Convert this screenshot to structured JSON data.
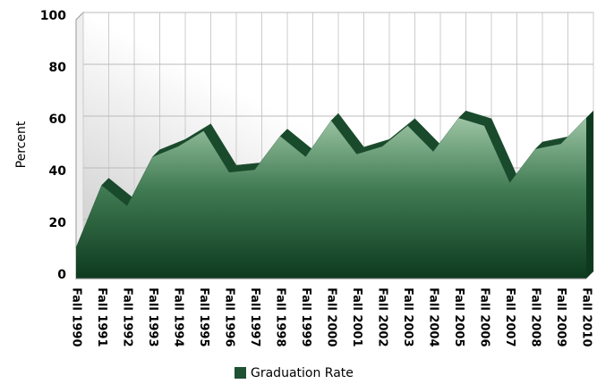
{
  "chart_data": {
    "type": "area",
    "categories": [
      "Fall 1990",
      "Fall 1991",
      "Fall 1992",
      "Fall 1993",
      "Fall 1994",
      "Fall 1995",
      "Fall 1996",
      "Fall 1997",
      "Fall 1998",
      "Fall 1999",
      "Fall 2000",
      "Fall 2001",
      "Fall 2002",
      "Fall 2003",
      "Fall 2004",
      "Fall 2005",
      "Fall 2006",
      "Fall 2007",
      "Fall 2008",
      "Fall 2009",
      "Fall 2010"
    ],
    "series": [
      {
        "name": "Graduation Rate",
        "color": "#1e5232",
        "values": [
          12,
          36,
          28,
          47,
          51,
          57,
          41,
          42,
          55,
          47,
          61,
          48,
          51,
          59,
          49,
          62,
          59,
          37,
          50,
          52,
          62
        ]
      }
    ],
    "ylabel": "Percent",
    "ylim": [
      0,
      100
    ],
    "yticks": [
      0,
      20,
      40,
      60,
      80,
      100
    ],
    "grid": true,
    "legend": "bottom"
  }
}
